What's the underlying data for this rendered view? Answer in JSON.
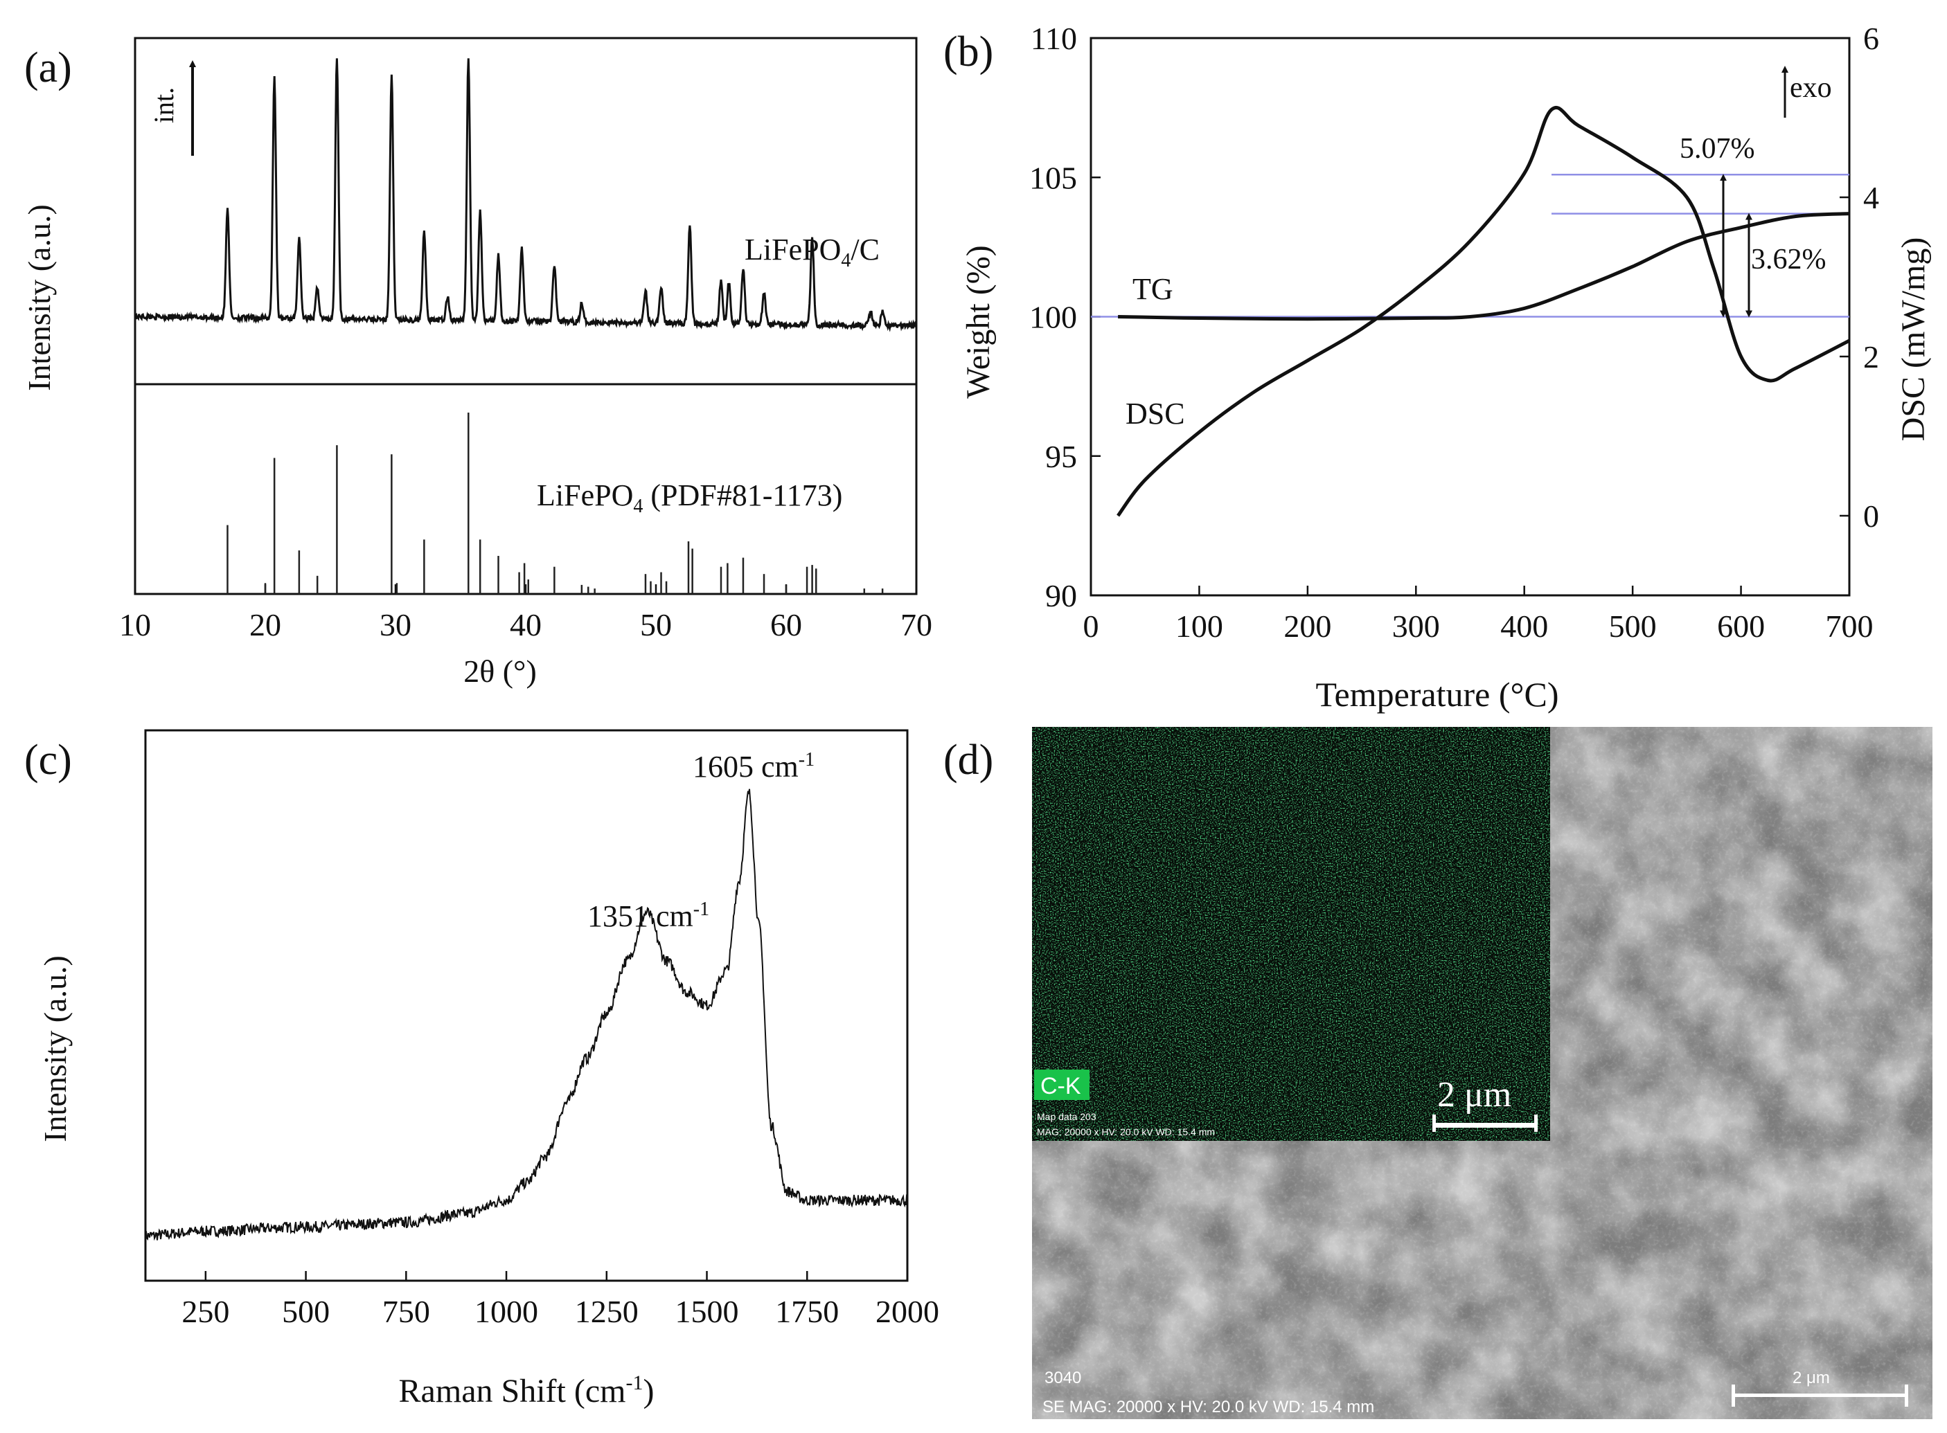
{
  "figure": {
    "panel_labels": [
      "(a)",
      "(b)",
      "(c)",
      "(d)"
    ]
  },
  "chart_data": [
    {
      "id": "a",
      "type": "line",
      "title": "",
      "xlabel": "2θ (°)",
      "ylabel": "Intensity (a.u.)",
      "xlim": [
        10,
        70
      ],
      "xticks": [
        "10",
        "20",
        "30",
        "40",
        "50",
        "60",
        "70"
      ],
      "arrow_label": "int.",
      "series": [
        {
          "name": "LiFePO4/C",
          "label_main": "LiFePO",
          "label_sub": "4",
          "label_tail": "/C",
          "baseline": 0.12,
          "peaks": [
            {
              "x": 17.1,
              "h": 0.42
            },
            {
              "x": 20.7,
              "h": 0.92
            },
            {
              "x": 22.6,
              "h": 0.31
            },
            {
              "x": 24.0,
              "h": 0.12
            },
            {
              "x": 25.5,
              "h": 1.0
            },
            {
              "x": 29.7,
              "h": 0.93
            },
            {
              "x": 32.2,
              "h": 0.34
            },
            {
              "x": 34.0,
              "h": 0.09
            },
            {
              "x": 35.6,
              "h": 1.0
            },
            {
              "x": 36.5,
              "h": 0.42
            },
            {
              "x": 37.9,
              "h": 0.25
            },
            {
              "x": 39.7,
              "h": 0.28
            },
            {
              "x": 42.2,
              "h": 0.22
            },
            {
              "x": 44.3,
              "h": 0.07
            },
            {
              "x": 49.2,
              "h": 0.12
            },
            {
              "x": 50.4,
              "h": 0.14
            },
            {
              "x": 52.6,
              "h": 0.38
            },
            {
              "x": 55.0,
              "h": 0.17
            },
            {
              "x": 55.6,
              "h": 0.16
            },
            {
              "x": 56.7,
              "h": 0.21
            },
            {
              "x": 58.3,
              "h": 0.12
            },
            {
              "x": 62.0,
              "h": 0.33
            },
            {
              "x": 66.5,
              "h": 0.05
            },
            {
              "x": 67.4,
              "h": 0.05
            }
          ]
        },
        {
          "name": "LiFePO4 (PDF#81-1173)",
          "label_main": "LiFePO",
          "label_sub": "4",
          "label_tail": " (PDF#81-1173)",
          "type": "stick",
          "sticks": [
            {
              "x": 17.1,
              "h": 0.38
            },
            {
              "x": 20.0,
              "h": 0.06
            },
            {
              "x": 20.7,
              "h": 0.75
            },
            {
              "x": 22.6,
              "h": 0.24
            },
            {
              "x": 24.0,
              "h": 0.1
            },
            {
              "x": 25.5,
              "h": 0.82
            },
            {
              "x": 29.7,
              "h": 0.77
            },
            {
              "x": 30.1,
              "h": 0.06
            },
            {
              "x": 32.2,
              "h": 0.3
            },
            {
              "x": 35.6,
              "h": 1.0
            },
            {
              "x": 36.5,
              "h": 0.3
            },
            {
              "x": 37.9,
              "h": 0.21
            },
            {
              "x": 39.5,
              "h": 0.12
            },
            {
              "x": 39.9,
              "h": 0.17
            },
            {
              "x": 40.2,
              "h": 0.08
            },
            {
              "x": 42.2,
              "h": 0.15
            },
            {
              "x": 44.3,
              "h": 0.05
            },
            {
              "x": 44.8,
              "h": 0.04
            },
            {
              "x": 45.3,
              "h": 0.03
            },
            {
              "x": 49.2,
              "h": 0.11
            },
            {
              "x": 49.6,
              "h": 0.07
            },
            {
              "x": 50.4,
              "h": 0.12
            },
            {
              "x": 50.8,
              "h": 0.07
            },
            {
              "x": 52.5,
              "h": 0.29
            },
            {
              "x": 52.8,
              "h": 0.25
            },
            {
              "x": 55.0,
              "h": 0.15
            },
            {
              "x": 55.5,
              "h": 0.17
            },
            {
              "x": 56.7,
              "h": 0.2
            },
            {
              "x": 58.3,
              "h": 0.11
            },
            {
              "x": 60.0,
              "h": 0.05
            },
            {
              "x": 61.6,
              "h": 0.15
            },
            {
              "x": 62.0,
              "h": 0.16
            },
            {
              "x": 62.3,
              "h": 0.14
            },
            {
              "x": 66.0,
              "h": 0.03
            },
            {
              "x": 67.4,
              "h": 0.03
            }
          ]
        }
      ]
    },
    {
      "id": "b",
      "type": "line",
      "title": "",
      "xlabel": "Temperature (°C)",
      "ylabel": "Weight (%)",
      "ylabel_right": "DSC (mW/mg)",
      "xlim": [
        0,
        700
      ],
      "ylim": [
        90,
        110
      ],
      "ylim_right": [
        -1,
        6
      ],
      "xticks": [
        "0",
        "100",
        "200",
        "300",
        "400",
        "500",
        "600",
        "700"
      ],
      "yticks": [
        "90",
        "95",
        "100",
        "105",
        "110"
      ],
      "yticks_right": [
        "0",
        "2",
        "4",
        "6"
      ],
      "annotations": {
        "tg": "TG",
        "dsc": "DSC",
        "exo": "exo",
        "loss_total": "5.07%",
        "loss_step": "3.62%"
      },
      "reference_lines": [
        100.0,
        103.7,
        105.1
      ],
      "series": [
        {
          "name": "TG",
          "axis": "left",
          "x": [
            25,
            100,
            200,
            300,
            350,
            400,
            450,
            500,
            550,
            600,
            650,
            700
          ],
          "y": [
            100.0,
            99.95,
            99.92,
            99.95,
            100.0,
            100.3,
            101.0,
            101.8,
            102.7,
            103.2,
            103.6,
            103.7
          ]
        },
        {
          "name": "DSC",
          "axis": "right",
          "x": [
            25,
            50,
            100,
            150,
            200,
            250,
            300,
            350,
            400,
            425,
            450,
            500,
            550,
            575,
            600,
            625,
            650,
            700
          ],
          "y": [
            0.0,
            0.45,
            1.05,
            1.55,
            1.95,
            2.35,
            2.85,
            3.45,
            4.3,
            5.1,
            4.9,
            4.5,
            4.0,
            3.1,
            2.0,
            1.7,
            1.85,
            2.2
          ]
        }
      ]
    },
    {
      "id": "c",
      "type": "line",
      "title": "",
      "xlabel": "Raman Shift (cm",
      "xlabel_sup": "-1",
      "xlabel_tail": ")",
      "ylabel": "Intensity (a.u.)",
      "xlim": [
        100,
        2000
      ],
      "xticks": [
        "250",
        "500",
        "750",
        "1000",
        "1250",
        "1500",
        "1750",
        "2000"
      ],
      "peaks": [
        {
          "x": 1351,
          "label": "1351 cm",
          "sup": "-1"
        },
        {
          "x": 1605,
          "label": "1605 cm",
          "sup": "-1"
        }
      ],
      "series": [
        {
          "name": "Raman",
          "x": [
            100,
            250,
            500,
            750,
            900,
            1000,
            1050,
            1100,
            1150,
            1200,
            1250,
            1300,
            1351,
            1400,
            1450,
            1500,
            1550,
            1580,
            1605,
            1630,
            1660,
            1700,
            1750,
            1800,
            2000
          ],
          "y": [
            0.0,
            0.01,
            0.02,
            0.03,
            0.05,
            0.08,
            0.12,
            0.18,
            0.3,
            0.4,
            0.5,
            0.62,
            0.73,
            0.62,
            0.55,
            0.52,
            0.6,
            0.8,
            1.0,
            0.7,
            0.25,
            0.1,
            0.08,
            0.08,
            0.08
          ]
        }
      ]
    }
  ],
  "panel_d": {
    "map_element_label": "C-K",
    "map_info_line1": "Map data 203",
    "map_info_line2": "MAG: 20000 x  HV: 20.0 kV  WD: 15.4 mm",
    "map_scale_label": "2 μm",
    "sem_id": "3040",
    "sem_info": "SE  MAG: 20000 x  HV: 20.0 kV  WD: 15.4 mm",
    "sem_scale_label": "2 μm",
    "map_color": "#19c24a",
    "map_tag_color": "#19c24a"
  }
}
